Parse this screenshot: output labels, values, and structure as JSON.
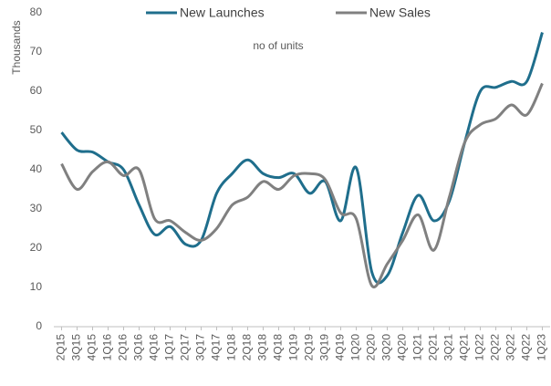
{
  "chart_data": {
    "type": "line",
    "y_label": "Thousands",
    "annotation": "no of units",
    "categories": [
      "2Q15",
      "3Q15",
      "4Q15",
      "1Q16",
      "2Q16",
      "3Q16",
      "4Q16",
      "1Q17",
      "2Q17",
      "3Q17",
      "4Q17",
      "1Q18",
      "2Q18",
      "3Q18",
      "4Q18",
      "1Q19",
      "2Q19",
      "3Q19",
      "4Q19",
      "1Q20",
      "2Q20",
      "3Q20",
      "4Q20",
      "1Q21",
      "2Q21",
      "3Q21",
      "4Q21",
      "1Q22",
      "2Q22",
      "3Q22",
      "4Q22",
      "1Q23"
    ],
    "series": [
      {
        "name": "New Launches",
        "color": "#1f6e8c",
        "values": [
          49.5,
          45,
          44.5,
          42,
          40,
          31,
          23.5,
          25.5,
          21,
          22,
          34,
          39,
          42.5,
          39,
          38,
          39,
          34,
          37,
          27,
          40.5,
          14,
          13,
          24,
          33.5,
          27,
          32,
          47,
          60,
          61,
          62.5,
          62.5,
          75
        ]
      },
      {
        "name": "New Sales",
        "color": "#808080",
        "values": [
          41.5,
          35,
          39.5,
          42,
          38.5,
          40,
          27.5,
          27,
          24,
          22,
          25,
          31,
          33,
          37,
          35,
          38.5,
          39,
          37.5,
          29,
          27.5,
          10.5,
          16,
          22,
          28.5,
          19.5,
          33,
          47,
          51.5,
          53,
          56.5,
          54,
          62
        ]
      }
    ],
    "ylim": [
      0,
      80
    ],
    "yticks": [
      0,
      10,
      20,
      30,
      40,
      50,
      60,
      70,
      80
    ],
    "grid": false,
    "legend": "top"
  }
}
